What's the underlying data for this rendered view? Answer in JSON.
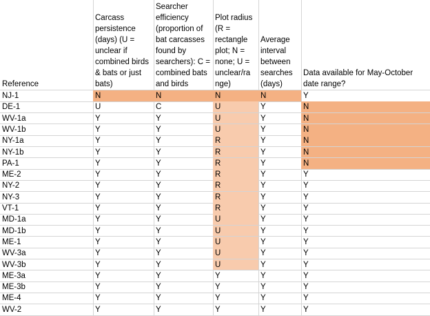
{
  "headers": {
    "reference": "Reference",
    "carcass_persistence": "Carcass\npersistence\n(days) (U =\nunclear if\ncombined birds\n& bats or just\nbats)",
    "searcher_efficiency": "Searcher\nefficiency\n(proportion of\nbat carcasses\nfound by\nsearchers): C =\ncombined bats\nand birds",
    "plot_radius": "Plot radius\n(R =\nrectangle\nplot; N =\nnone; U =\nunclear/ra\nnge)",
    "avg_interval": "Average\ninterval\nbetween\nsearches\n(days)",
    "data_available": "Data available for May-October\ndate range?"
  },
  "colors": {
    "dark_highlight": "#f4b183",
    "light_highlight": "#f8cbad",
    "gridline": "#d4d4d4"
  },
  "rows": [
    {
      "ref": "NJ-1",
      "cp": "N",
      "se": "N",
      "pr": "N",
      "ai": "N",
      "da": "Y"
    },
    {
      "ref": "DE-1",
      "cp": "U",
      "se": "C",
      "pr": "U",
      "ai": "Y",
      "da": "N"
    },
    {
      "ref": "WV-1a",
      "cp": "Y",
      "se": "Y",
      "pr": "U",
      "ai": "Y",
      "da": "N"
    },
    {
      "ref": "WV-1b",
      "cp": "Y",
      "se": "Y",
      "pr": "U",
      "ai": "Y",
      "da": "N"
    },
    {
      "ref": "NY-1a",
      "cp": "Y",
      "se": "Y",
      "pr": "R",
      "ai": "Y",
      "da": "N"
    },
    {
      "ref": "NY-1b",
      "cp": "Y",
      "se": "Y",
      "pr": "R",
      "ai": "Y",
      "da": "N"
    },
    {
      "ref": "PA-1",
      "cp": "Y",
      "se": "Y",
      "pr": "R",
      "ai": "Y",
      "da": "N"
    },
    {
      "ref": "ME-2",
      "cp": "Y",
      "se": "Y",
      "pr": "R",
      "ai": "Y",
      "da": "Y"
    },
    {
      "ref": "NY-2",
      "cp": "Y",
      "se": "Y",
      "pr": "R",
      "ai": "Y",
      "da": "Y"
    },
    {
      "ref": "NY-3",
      "cp": "Y",
      "se": "Y",
      "pr": "R",
      "ai": "Y",
      "da": "Y"
    },
    {
      "ref": "VT-1",
      "cp": "Y",
      "se": "Y",
      "pr": "R",
      "ai": "Y",
      "da": "Y"
    },
    {
      "ref": "MD-1a",
      "cp": "Y",
      "se": "Y",
      "pr": "U",
      "ai": "Y",
      "da": "Y"
    },
    {
      "ref": "MD-1b",
      "cp": "Y",
      "se": "Y",
      "pr": "U",
      "ai": "Y",
      "da": "Y"
    },
    {
      "ref": "ME-1",
      "cp": "Y",
      "se": "Y",
      "pr": "U",
      "ai": "Y",
      "da": "Y"
    },
    {
      "ref": "WV-3a",
      "cp": "Y",
      "se": "Y",
      "pr": "U",
      "ai": "Y",
      "da": "Y"
    },
    {
      "ref": "WV-3b",
      "cp": "Y",
      "se": "Y",
      "pr": "U",
      "ai": "Y",
      "da": "Y"
    },
    {
      "ref": "ME-3a",
      "cp": "Y",
      "se": "Y",
      "pr": "Y",
      "ai": "Y",
      "da": "Y"
    },
    {
      "ref": "ME-3b",
      "cp": "Y",
      "se": "Y",
      "pr": "Y",
      "ai": "Y",
      "da": "Y"
    },
    {
      "ref": "ME-4",
      "cp": "Y",
      "se": "Y",
      "pr": "Y",
      "ai": "Y",
      "da": "Y"
    },
    {
      "ref": "WV-2",
      "cp": "Y",
      "se": "Y",
      "pr": "Y",
      "ai": "Y",
      "da": "Y"
    }
  ]
}
